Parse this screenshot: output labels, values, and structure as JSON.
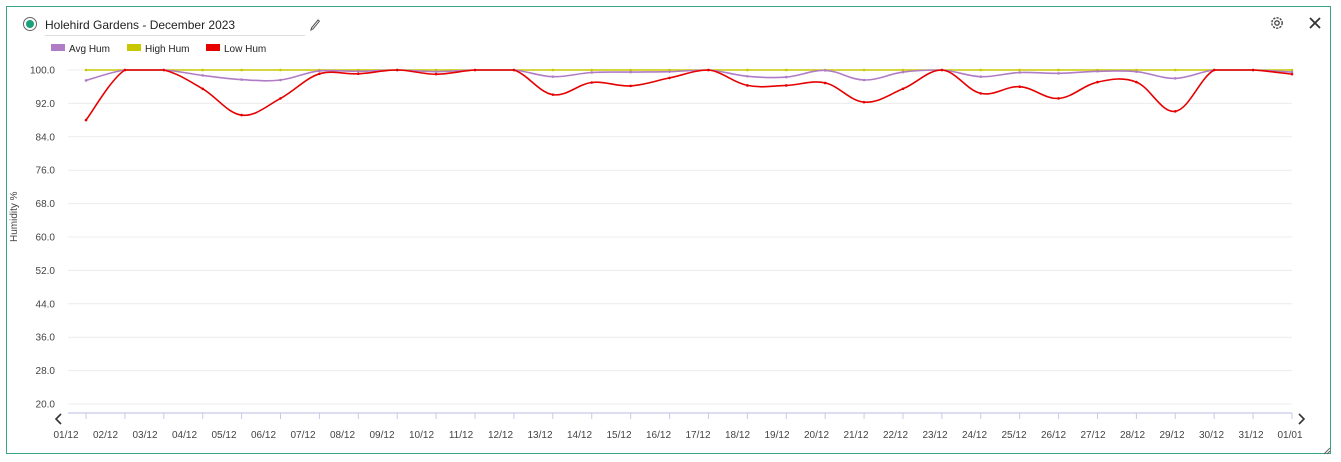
{
  "window": {
    "title": "Holehird Gardens - December 2023"
  },
  "icons": {
    "status": "status-dot-icon",
    "edit": "pencil-icon",
    "settings": "gear-icon",
    "close": "close-icon",
    "prev": "chevron-left-icon",
    "next": "chevron-right-icon",
    "resize": "resize-handle-icon"
  },
  "colors": {
    "frame": "#3aa489",
    "avg": "#b07cc6",
    "high": "#c8c800",
    "low": "#e60000",
    "status": "#1aa07a"
  },
  "chart_data": {
    "type": "line",
    "title": "",
    "xlabel": "",
    "ylabel": "Humidity %",
    "ylim": [
      20,
      100
    ],
    "yticks": [
      "100.0",
      "92.0",
      "84.0",
      "76.0",
      "68.0",
      "60.0",
      "52.0",
      "44.0",
      "36.0",
      "28.0",
      "20.0"
    ],
    "categories": [
      "01/12",
      "02/12",
      "03/12",
      "04/12",
      "05/12",
      "06/12",
      "07/12",
      "08/12",
      "09/12",
      "10/12",
      "11/12",
      "12/12",
      "13/12",
      "14/12",
      "15/12",
      "16/12",
      "17/12",
      "18/12",
      "19/12",
      "20/12",
      "21/12",
      "22/12",
      "23/12",
      "24/12",
      "25/12",
      "26/12",
      "27/12",
      "28/12",
      "29/12",
      "30/12",
      "31/12",
      "01/01"
    ],
    "legend_position": "top-left",
    "grid": true,
    "series": [
      {
        "name": "Avg Hum",
        "color": "#b07cc6",
        "values": [
          97.5,
          100,
          100,
          98.7,
          97.7,
          97.6,
          99.8,
          99.7,
          100,
          99.6,
          100,
          100,
          98.4,
          99.4,
          99.5,
          99.6,
          100,
          98.5,
          98.3,
          99.9,
          97.6,
          99.5,
          100,
          98.4,
          99.4,
          99.2,
          99.7,
          99.6,
          98,
          100,
          100,
          99.5
        ]
      },
      {
        "name": "High Hum",
        "color": "#c8c800",
        "values": [
          100,
          100,
          100,
          100,
          100,
          100,
          100,
          100,
          100,
          100,
          100,
          100,
          100,
          100,
          100,
          100,
          100,
          100,
          100,
          100,
          100,
          100,
          100,
          100,
          100,
          100,
          100,
          100,
          100,
          100,
          100,
          100
        ]
      },
      {
        "name": "Low Hum",
        "color": "#e60000",
        "values": [
          88,
          100,
          100,
          95.5,
          89.2,
          93.2,
          99.1,
          99.1,
          100,
          99,
          100,
          100,
          94.1,
          97,
          96.2,
          98.1,
          100,
          96.3,
          96.3,
          96.9,
          92.3,
          95.5,
          100,
          94.4,
          96,
          93.2,
          97.1,
          97.1,
          90.1,
          100,
          100,
          99
        ]
      }
    ]
  }
}
